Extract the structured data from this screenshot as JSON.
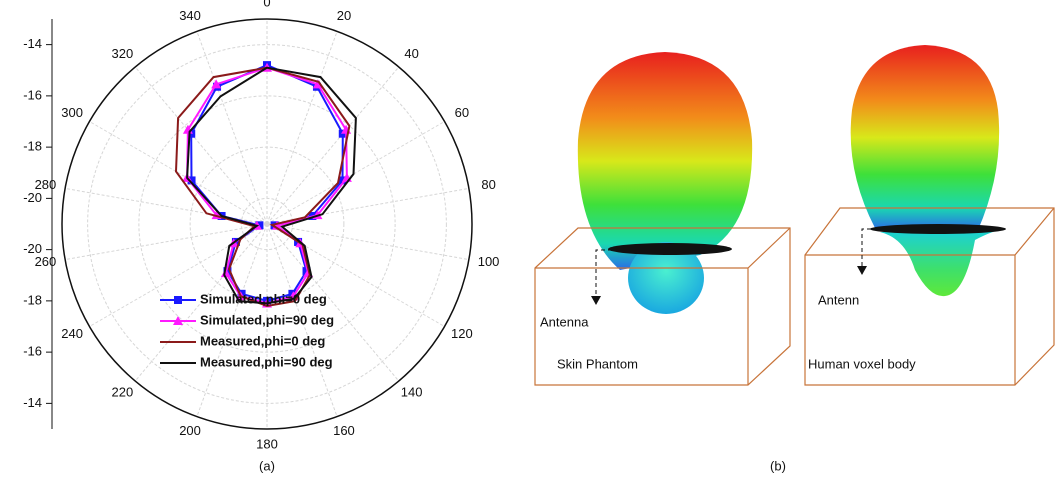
{
  "chart_data": {
    "type": "polar",
    "x": [
      0,
      20,
      40,
      60,
      80,
      100,
      120,
      140,
      160,
      180,
      200,
      220,
      240,
      260,
      280,
      300,
      320,
      340
    ],
    "rlim": [
      -21,
      -13
    ],
    "rticks": [
      -14,
      -16,
      -18,
      -20
    ],
    "series": [
      {
        "name": "Simulated,phi=0 deg",
        "color": "#1a1aff",
        "marker": "square",
        "values": [
          -14.8,
          -15.3,
          -16.4,
          -17.6,
          -19.2,
          -20.7,
          -19.6,
          -18.6,
          -18.1,
          -18.0,
          -18.1,
          -18.6,
          -19.6,
          -20.7,
          -19.2,
          -17.6,
          -16.4,
          -15.3
        ]
      },
      {
        "name": "Simulated,phi=90 deg",
        "color": "#ff1aff",
        "marker": "triangle",
        "values": [
          -14.9,
          -15.2,
          -16.2,
          -17.4,
          -19.0,
          -20.6,
          -19.5,
          -18.5,
          -18.0,
          -17.9,
          -18.0,
          -18.5,
          -19.5,
          -20.6,
          -19.0,
          -17.4,
          -16.2,
          -15.2
        ]
      },
      {
        "name": "Measured,phi=0 deg",
        "color": "#8b1a1a",
        "marker": "none",
        "values": [
          -14.9,
          -15.1,
          -16.0,
          -17.8,
          -19.5,
          -20.8,
          -19.4,
          -18.4,
          -17.8,
          -17.8,
          -18.0,
          -18.7,
          -19.8,
          -20.5,
          -18.6,
          -16.9,
          -15.6,
          -14.9
        ]
      },
      {
        "name": "Measured,phi=90 deg",
        "color": "#111111",
        "marker": "none",
        "values": [
          -14.9,
          -14.9,
          -15.6,
          -17.1,
          -18.8,
          -20.4,
          -19.3,
          -18.3,
          -17.9,
          -17.9,
          -17.8,
          -18.4,
          -19.3,
          -20.6,
          -19.2,
          -17.4,
          -16.3,
          -15.7
        ]
      }
    ],
    "caption": "(a)"
  },
  "panel_b": {
    "caption": "(b)",
    "left": {
      "antenna_label": "Antenna",
      "body_label": "Skin Phantom"
    },
    "right": {
      "antenna_label": "Antenn",
      "body_label": "Human voxel body"
    }
  }
}
